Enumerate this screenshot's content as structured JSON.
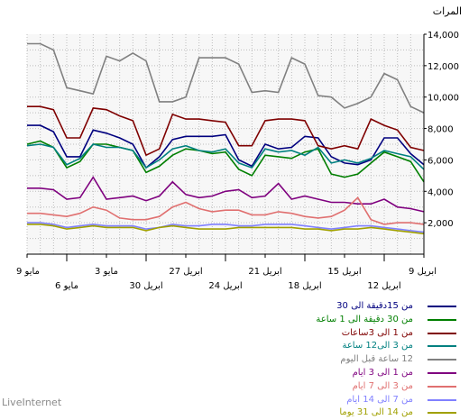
{
  "chart_data": {
    "type": "line",
    "ylabel": "المرات",
    "ylim": [
      0,
      14000
    ],
    "yticks": [
      2000,
      4000,
      6000,
      8000,
      10000,
      12000,
      14000
    ],
    "ytick_labels": [
      "2,000",
      "4,000",
      "6,000",
      "8,000",
      "10,000",
      "12,000",
      "14,000"
    ],
    "grid": true,
    "legend_position": "bottom-right",
    "x_count": 31,
    "xticks_upper": [
      {
        "i": 0,
        "label": "9 مايو"
      },
      {
        "i": 6,
        "label": "3 مايو"
      },
      {
        "i": 12,
        "label": "27 ابريل"
      },
      {
        "i": 18,
        "label": "21 ابريل"
      },
      {
        "i": 24,
        "label": "15 ابريل"
      },
      {
        "i": 30,
        "label": "9 ابريل"
      }
    ],
    "xticks_lower": [
      {
        "i": 3,
        "label": "6 مايو"
      },
      {
        "i": 9,
        "label": "30 ابريل"
      },
      {
        "i": 15,
        "label": "24 ابريل"
      },
      {
        "i": 21,
        "label": "18 ابريل"
      },
      {
        "i": 27,
        "label": "12 ابريل"
      }
    ],
    "series": [
      {
        "name": "من 15دقيقة الى 30",
        "color": "#00007f",
        "values": [
          8200,
          8200,
          7800,
          6200,
          6200,
          7900,
          7700,
          7400,
          7000,
          5500,
          6200,
          7300,
          7500,
          7500,
          7500,
          7600,
          6000,
          5600,
          7000,
          6700,
          6800,
          7500,
          7400,
          6200,
          5800,
          5700,
          6000,
          7400,
          7400,
          6400,
          5700
        ]
      },
      {
        "name": "من 30 دقيقة الى 1 ساعة",
        "color": "#007f00",
        "values": [
          7000,
          7200,
          6800,
          5500,
          5900,
          7000,
          7000,
          6800,
          6600,
          5200,
          5600,
          6300,
          6700,
          6600,
          6400,
          6500,
          5400,
          5000,
          6300,
          6200,
          6100,
          6500,
          6700,
          5100,
          4900,
          5100,
          5800,
          6500,
          6200,
          5900,
          4600
        ]
      },
      {
        "name": "من 1 الى 3ساعات",
        "color": "#7f0000",
        "values": [
          9400,
          9400,
          9200,
          7400,
          7400,
          9300,
          9200,
          8800,
          8500,
          6300,
          6700,
          8900,
          8600,
          8600,
          8500,
          8400,
          6900,
          6900,
          8500,
          8600,
          8600,
          8500,
          6900,
          6700,
          6900,
          6700,
          8600,
          8200,
          7900,
          6800,
          6600
        ]
      },
      {
        "name": "من 3 الى12 ساعة",
        "color": "#008080",
        "values": [
          6900,
          7000,
          6800,
          5700,
          6100,
          7000,
          6800,
          6800,
          6600,
          5500,
          6000,
          6700,
          6900,
          6600,
          6500,
          6700,
          5800,
          5500,
          6700,
          6500,
          6600,
          6300,
          6800,
          5800,
          6000,
          5800,
          6100,
          6600,
          6400,
          6200,
          5400
        ]
      },
      {
        "name": "12 ساعة قبل اليوم",
        "color": "#808080",
        "values": [
          13400,
          13400,
          13000,
          10600,
          10400,
          10200,
          12600,
          12300,
          12800,
          12300,
          9700,
          9700,
          10000,
          12500,
          12500,
          12500,
          12100,
          10300,
          10400,
          10300,
          12500,
          12100,
          10100,
          10000,
          9300,
          9600,
          10000,
          11500,
          11100,
          9400,
          9000
        ]
      },
      {
        "name": "من 1 الى 3 ايام",
        "color": "#7f007f",
        "values": [
          4200,
          4200,
          4100,
          3500,
          3600,
          4900,
          3500,
          3600,
          3700,
          3400,
          3700,
          4600,
          3800,
          3600,
          3700,
          4000,
          4100,
          3600,
          3700,
          4500,
          3500,
          3700,
          3500,
          3300,
          3300,
          3200,
          3200,
          3500,
          3000,
          2900,
          2700
        ]
      },
      {
        "name": "من 3 الى 7 ايام",
        "color": "#e07070",
        "values": [
          2600,
          2600,
          2500,
          2400,
          2600,
          3000,
          2800,
          2300,
          2200,
          2200,
          2400,
          3000,
          3300,
          2900,
          2700,
          2800,
          2800,
          2500,
          2500,
          2700,
          2600,
          2400,
          2300,
          2400,
          2800,
          3600,
          2200,
          1900,
          2000,
          2000,
          1900
        ]
      },
      {
        "name": "من 7 الى 14 ايام",
        "color": "#8080ff",
        "values": [
          2000,
          2000,
          1900,
          1700,
          1800,
          1900,
          1800,
          1800,
          1800,
          1600,
          1700,
          1900,
          1800,
          1800,
          1900,
          1900,
          1800,
          1800,
          1900,
          1900,
          1900,
          1800,
          1700,
          1600,
          1700,
          1800,
          1800,
          1700,
          1600,
          1500,
          1400
        ]
      },
      {
        "name": "من 14 الى 31 يوما",
        "color": "#a0a000",
        "values": [
          1900,
          1900,
          1800,
          1600,
          1700,
          1800,
          1700,
          1700,
          1700,
          1500,
          1700,
          1800,
          1700,
          1600,
          1600,
          1600,
          1700,
          1700,
          1700,
          1700,
          1700,
          1600,
          1600,
          1500,
          1600,
          1600,
          1700,
          1600,
          1500,
          1400,
          1300
        ]
      }
    ]
  },
  "footer": {
    "brand": "LiveInternet"
  }
}
